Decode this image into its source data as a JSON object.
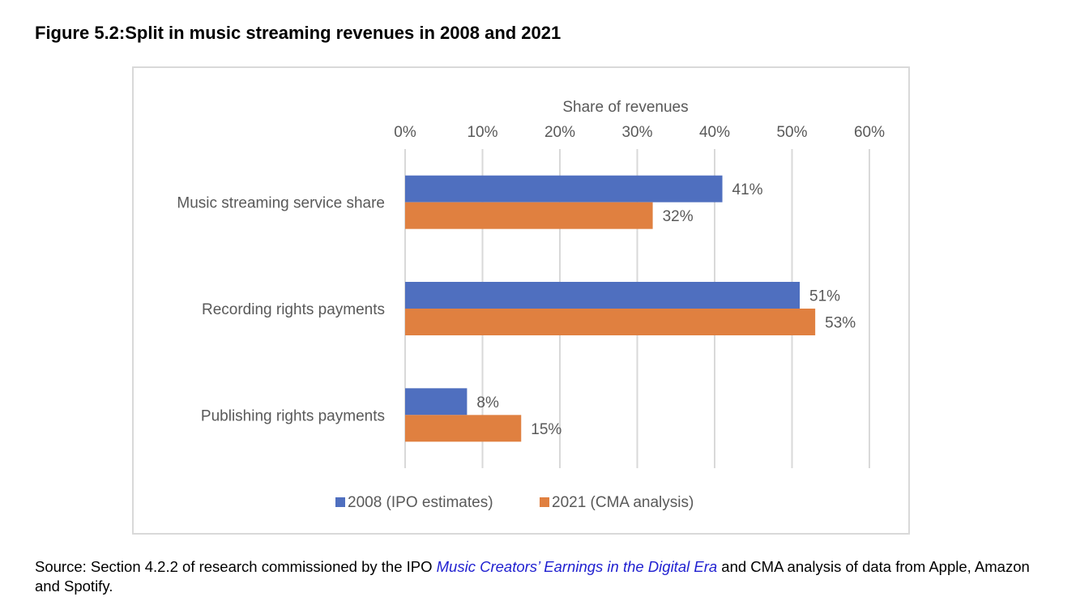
{
  "figure": {
    "title": "Figure 5.2:Split in music streaming revenues in 2008 and 2021"
  },
  "chart_data": {
    "type": "bar",
    "orientation": "horizontal",
    "title": "",
    "xlabel": "Share of revenues",
    "ylabel": "",
    "xlim": [
      0,
      60
    ],
    "x_ticks": [
      "0%",
      "10%",
      "20%",
      "30%",
      "40%",
      "50%",
      "60%"
    ],
    "x_tick_values": [
      0,
      10,
      20,
      30,
      40,
      50,
      60
    ],
    "categories": [
      "Music streaming service share",
      "Recording rights payments",
      "Publishing rights payments"
    ],
    "series": [
      {
        "name": "2008 (IPO estimates)",
        "values": [
          41,
          51,
          8
        ],
        "labels": [
          "41%",
          "51%",
          "8%"
        ],
        "color": "#4f6fbf"
      },
      {
        "name": "2021 (CMA analysis)",
        "values": [
          32,
          53,
          15
        ],
        "labels": [
          "32%",
          "53%",
          "15%"
        ],
        "color": "#e08040"
      }
    ],
    "grid": true,
    "x_axis_position": "top",
    "legend_position": "bottom"
  },
  "source": {
    "prefix": "Source: Section 4.2.2 of research commissioned by the IPO ",
    "link_text": "Music Creators’ Earnings in the Digital Era",
    "suffix": " and CMA analysis of data from Apple, Amazon and Spotify."
  }
}
